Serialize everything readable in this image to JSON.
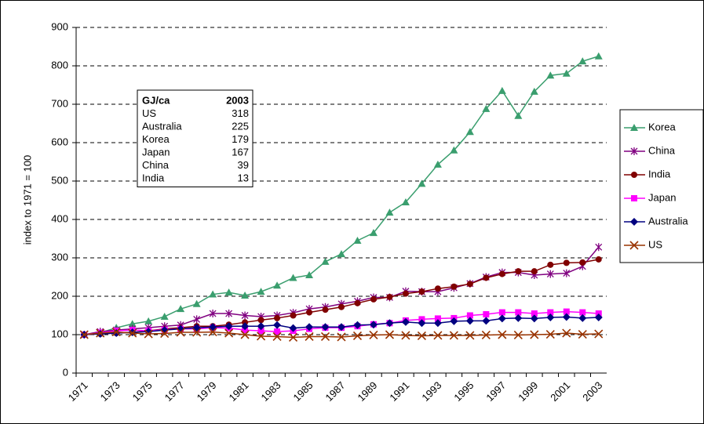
{
  "chart_data": {
    "type": "line",
    "y_axis_label": "index to 1971 = 100",
    "categories": [
      "1971",
      null,
      "1973",
      null,
      "1975",
      null,
      "1977",
      null,
      "1979",
      null,
      "1981",
      null,
      "1983",
      null,
      "1985",
      null,
      "1987",
      null,
      "1989",
      null,
      "1991",
      null,
      "1993",
      null,
      "1995",
      null,
      "1997",
      null,
      "1999",
      null,
      "2001",
      null,
      "2003"
    ],
    "ylim": [
      0,
      900
    ],
    "yticks": [
      0,
      100,
      200,
      300,
      400,
      500,
      600,
      700,
      800,
      900
    ],
    "grid": true,
    "legend": "right",
    "series": [
      {
        "name": "Korea",
        "color": "#3a9e6e",
        "marker": "triangle",
        "values": [
          100,
          105,
          118,
          128,
          135,
          147,
          167,
          180,
          205,
          210,
          202,
          212,
          228,
          248,
          255,
          290,
          310,
          345,
          365,
          418,
          445,
          493,
          543,
          580,
          628,
          688,
          735,
          670,
          733,
          775,
          780,
          812,
          825
        ]
      },
      {
        "name": "China",
        "color": "#800080",
        "marker": "star",
        "values": [
          100,
          108,
          112,
          115,
          118,
          122,
          125,
          140,
          155,
          155,
          150,
          147,
          150,
          157,
          167,
          172,
          180,
          187,
          197,
          197,
          213,
          212,
          212,
          222,
          233,
          250,
          262,
          262,
          255,
          258,
          260,
          278,
          328
        ]
      },
      {
        "name": "India",
        "color": "#800000",
        "marker": "circle",
        "values": [
          100,
          102,
          104,
          106,
          110,
          115,
          118,
          122,
          122,
          126,
          132,
          138,
          143,
          150,
          158,
          165,
          172,
          182,
          192,
          198,
          207,
          212,
          220,
          225,
          232,
          248,
          258,
          265,
          265,
          282,
          287,
          288,
          296
        ]
      },
      {
        "name": "Japan",
        "color": "#ff00ff",
        "marker": "square",
        "values": [
          100,
          105,
          110,
          112,
          110,
          113,
          115,
          115,
          118,
          117,
          112,
          110,
          108,
          110,
          115,
          118,
          118,
          122,
          127,
          130,
          137,
          140,
          142,
          143,
          150,
          153,
          158,
          158,
          155,
          158,
          160,
          158,
          155
        ]
      },
      {
        "name": "Australia",
        "color": "#000080",
        "marker": "diamond",
        "values": [
          100,
          102,
          104,
          106,
          108,
          112,
          115,
          118,
          120,
          122,
          122,
          122,
          125,
          117,
          120,
          120,
          120,
          125,
          126,
          130,
          133,
          130,
          130,
          135,
          136,
          136,
          142,
          143,
          142,
          145,
          146,
          143,
          145
        ]
      },
      {
        "name": "US",
        "color": "#993300",
        "marker": "x",
        "values": [
          100,
          104,
          107,
          104,
          102,
          103,
          106,
          106,
          107,
          104,
          100,
          96,
          95,
          93,
          95,
          95,
          94,
          97,
          99,
          100,
          98,
          97,
          98,
          98,
          98,
          99,
          100,
          99,
          100,
          101,
          104,
          101,
          102
        ]
      }
    ],
    "inset_table": {
      "header": [
        "GJ/ca",
        "2003"
      ],
      "rows": [
        [
          "US",
          318
        ],
        [
          "Australia",
          225
        ],
        [
          "Korea",
          179
        ],
        [
          "Japan",
          167
        ],
        [
          "China",
          39
        ],
        [
          "India",
          13
        ]
      ]
    }
  }
}
